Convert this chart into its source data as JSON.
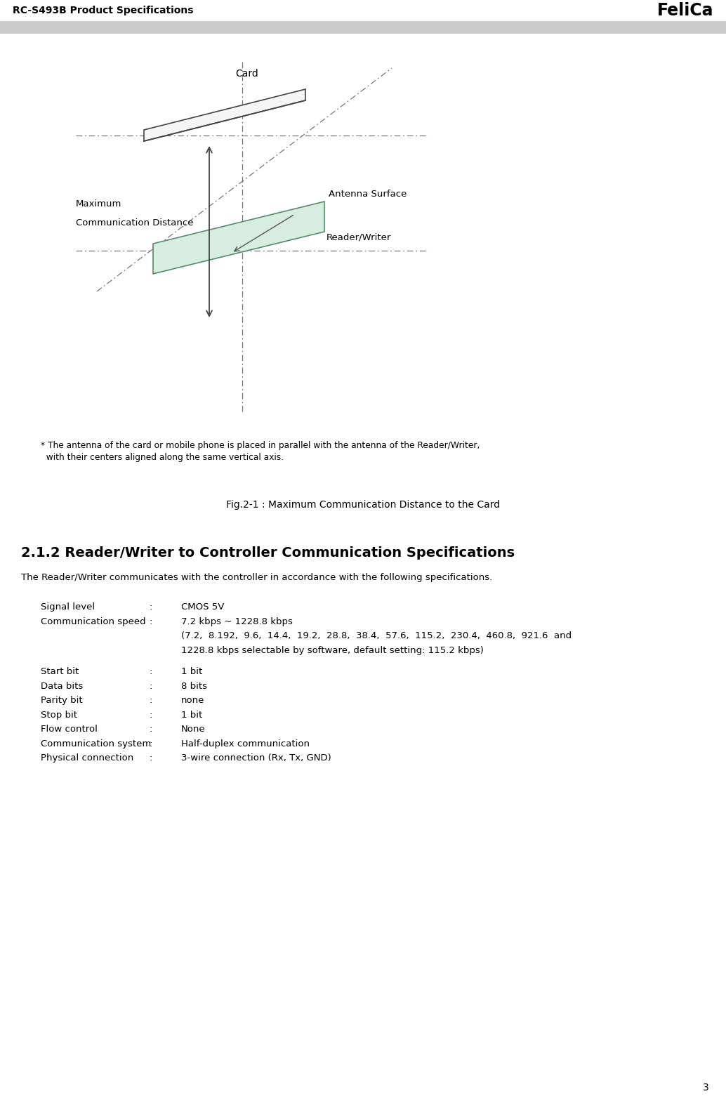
{
  "header_title": "RC-S493B Product Specifications",
  "header_logo": "FeliCa",
  "header_bg": "#d3d3d3",
  "page_bg": "#ffffff",
  "page_number": "3",
  "fig_caption": "Fig.2-1 : Maximum Communication Distance to the Card",
  "footnote_line1": "* The antenna of the card or mobile phone is placed in parallel with the antenna of the Reader/Writer,",
  "footnote_line2": "  with their centers aligned along the same vertical axis.",
  "label_card": "Card",
  "label_reader": "Reader/Writer",
  "label_antenna": "Antenna Surface",
  "label_max_comm1": "Maximum",
  "label_max_comm2": "Communication Distance",
  "section_title": "2.1.2 Reader/Writer to Controller Communication Specifications",
  "section_intro": "The Reader/Writer communicates with the controller in accordance with the following specifications.",
  "specs": [
    {
      "label": "Signal level",
      "colon": ":",
      "value": "CMOS 5V",
      "indent": false
    },
    {
      "label": "Communication speed",
      "colon": ":",
      "value": "7.2 kbps ~ 1228.8 kbps",
      "indent": false
    },
    {
      "label": "",
      "colon": "",
      "value": "(7.2,  8.192,  9.6,  14.4,  19.2,  28.8,  38.4,  57.6,  115.2,  230.4,  460.8,  921.6  and",
      "indent": true
    },
    {
      "label": "",
      "colon": "",
      "value": "1228.8 kbps selectable by software, default setting: 115.2 kbps)",
      "indent": true
    },
    {
      "label": "Start bit",
      "colon": ":",
      "value": "1 bit",
      "indent": false
    },
    {
      "label": "Data bits",
      "colon": ":",
      "value": "8 bits",
      "indent": false
    },
    {
      "label": "Parity bit",
      "colon": ":",
      "value": "none",
      "indent": false
    },
    {
      "label": "Stop bit",
      "colon": ":",
      "value": "1 bit",
      "indent": false
    },
    {
      "label": "Flow control",
      "colon": ":",
      "value": "None",
      "indent": false
    },
    {
      "label": "Communication system",
      "colon": ":",
      "value": "Half-duplex communication",
      "indent": false
    },
    {
      "label": "Physical connection",
      "colon": ":",
      "value": "3-wire connection (Rx, Tx, GND)",
      "indent": false
    }
  ],
  "card_color": "#f5f5f5",
  "card_edge": "#444444",
  "reader_color": "#d8ede2",
  "reader_edge": "#5a8a6a",
  "dash_color": "#777777",
  "arrow_color": "#444444",
  "text_color": "#000000"
}
